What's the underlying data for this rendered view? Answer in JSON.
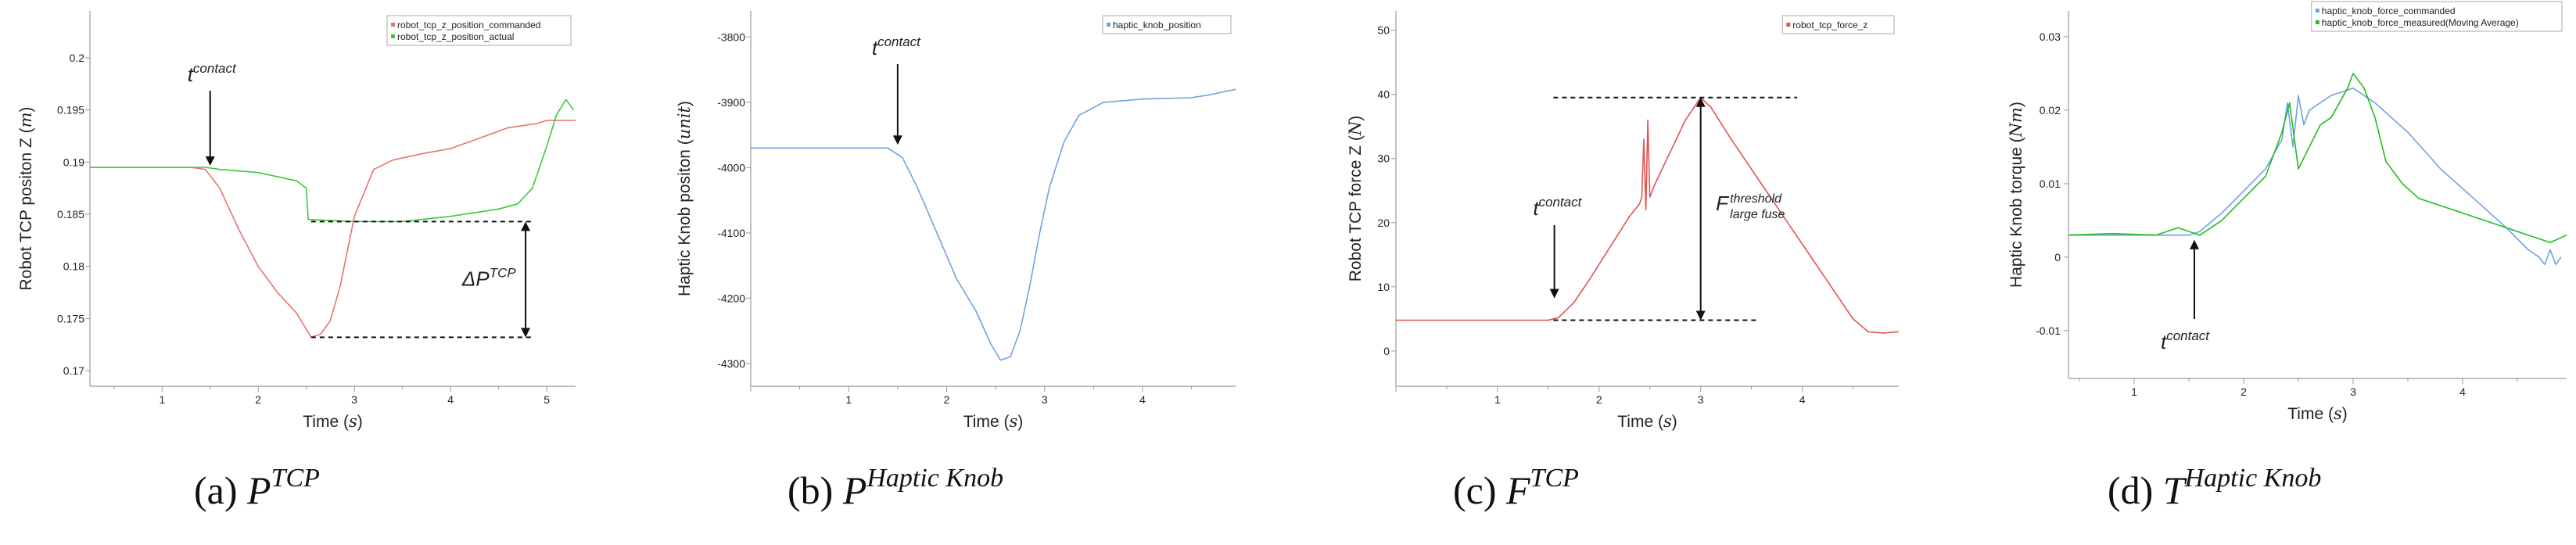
{
  "colors": {
    "commanded_red": "#e8736f",
    "actual_green": "#3cc93c",
    "knob_blue": "#6fa3df",
    "force_red": "#e05555",
    "torque_blue": "#6fa3df",
    "torque_green": "#22bb22"
  },
  "chart_data": [
    {
      "type": "line",
      "xlabel": "Time (s)",
      "ylabel": "Robot TCP positon Z (m)",
      "xlim": [
        0.25,
        5.3
      ],
      "ylim": [
        0.1685,
        0.2045
      ],
      "x_ticks": [
        1,
        2,
        3,
        4,
        5
      ],
      "y_ticks": [
        0.17,
        0.175,
        0.18,
        0.185,
        0.19,
        0.195,
        0.2
      ],
      "legend_position": "top-right",
      "series": [
        {
          "name": "robot_tcp_z_position_commanded",
          "color": "#e8736f",
          "points": [
            [
              0.25,
              0.1895
            ],
            [
              1.3,
              0.1895
            ],
            [
              1.45,
              0.1893
            ],
            [
              1.6,
              0.1875
            ],
            [
              1.8,
              0.1835
            ],
            [
              2.0,
              0.18
            ],
            [
              2.2,
              0.1775
            ],
            [
              2.4,
              0.1755
            ],
            [
              2.55,
              0.1732
            ],
            [
              2.65,
              0.1735
            ],
            [
              2.75,
              0.1748
            ],
            [
              2.85,
              0.178
            ],
            [
              3.0,
              0.1848
            ],
            [
              3.2,
              0.1893
            ],
            [
              3.4,
              0.1902
            ],
            [
              3.7,
              0.1908
            ],
            [
              4.0,
              0.1913
            ],
            [
              4.3,
              0.1923
            ],
            [
              4.6,
              0.1933
            ],
            [
              4.9,
              0.1937
            ],
            [
              5.0,
              0.194
            ],
            [
              5.3,
              0.194
            ]
          ]
        },
        {
          "name": "robot_tcp_z_position_actual",
          "color": "#3cc93c",
          "points": [
            [
              0.25,
              0.1895
            ],
            [
              1.45,
              0.1895
            ],
            [
              1.6,
              0.1893
            ],
            [
              2.0,
              0.189
            ],
            [
              2.4,
              0.1882
            ],
            [
              2.5,
              0.1875
            ],
            [
              2.52,
              0.1845
            ],
            [
              3.0,
              0.1843
            ],
            [
              3.5,
              0.1843
            ],
            [
              4.0,
              0.1848
            ],
            [
              4.5,
              0.1855
            ],
            [
              4.7,
              0.186
            ],
            [
              4.85,
              0.1875
            ],
            [
              5.0,
              0.1915
            ],
            [
              5.1,
              0.1945
            ],
            [
              5.2,
              0.196
            ],
            [
              5.28,
              0.195
            ]
          ]
        }
      ],
      "annotations": {
        "contact_label": "t",
        "contact_sup": "contact",
        "contact_x": 1.5,
        "delta_label": "ΔP",
        "delta_sup": "TCP"
      }
    },
    {
      "type": "line",
      "xlabel": "Time (s)",
      "ylabel": "Haptic Knob positon (unit)",
      "xlim": [
        0.0,
        4.95
      ],
      "ylim": [
        -4335,
        -3760
      ],
      "x_ticks": [
        1,
        2,
        3,
        4
      ],
      "y_ticks": [
        -4300,
        -4200,
        -4100,
        -4000,
        -3900,
        -3800
      ],
      "legend_position": "top-right",
      "series": [
        {
          "name": "haptic_knob_position",
          "color": "#6fa3df",
          "points": [
            [
              0.0,
              -3970
            ],
            [
              1.4,
              -3970
            ],
            [
              1.55,
              -3985
            ],
            [
              1.7,
              -4030
            ],
            [
              1.9,
              -4100
            ],
            [
              2.1,
              -4170
            ],
            [
              2.3,
              -4220
            ],
            [
              2.45,
              -4270
            ],
            [
              2.55,
              -4295
            ],
            [
              2.65,
              -4290
            ],
            [
              2.75,
              -4250
            ],
            [
              2.85,
              -4180
            ],
            [
              2.95,
              -4100
            ],
            [
              3.05,
              -4030
            ],
            [
              3.2,
              -3960
            ],
            [
              3.35,
              -3920
            ],
            [
              3.6,
              -3900
            ],
            [
              4.0,
              -3895
            ],
            [
              4.5,
              -3893
            ],
            [
              4.7,
              -3888
            ],
            [
              4.95,
              -3880
            ]
          ]
        }
      ],
      "annotations": {
        "contact_label": "t",
        "contact_sup": "contact",
        "contact_x": 1.5
      }
    },
    {
      "type": "line",
      "xlabel": "Time (s)",
      "ylabel": "Robot TCP force Z (N)",
      "xlim": [
        0.0,
        4.95
      ],
      "ylim": [
        -5.5,
        53
      ],
      "x_ticks": [
        1,
        2,
        3,
        4
      ],
      "y_ticks": [
        0,
        10,
        20,
        30,
        40,
        50
      ],
      "legend_position": "top-right",
      "series": [
        {
          "name": "robot_tcp_force_z",
          "color": "#e05555",
          "points": [
            [
              0.0,
              4.8
            ],
            [
              1.2,
              4.8
            ],
            [
              1.5,
              4.8
            ],
            [
              1.6,
              5.2
            ],
            [
              1.75,
              7.5
            ],
            [
              1.9,
              11
            ],
            [
              2.1,
              16
            ],
            [
              2.3,
              21
            ],
            [
              2.4,
              23
            ],
            [
              2.42,
              24
            ],
            [
              2.44,
              33
            ],
            [
              2.46,
              22
            ],
            [
              2.48,
              36
            ],
            [
              2.5,
              24
            ],
            [
              2.55,
              26
            ],
            [
              2.7,
              31
            ],
            [
              2.85,
              36
            ],
            [
              3.0,
              39.5
            ],
            [
              3.1,
              38
            ],
            [
              3.3,
              33
            ],
            [
              3.6,
              26
            ],
            [
              3.9,
              19
            ],
            [
              4.2,
              12
            ],
            [
              4.5,
              5
            ],
            [
              4.65,
              3
            ],
            [
              4.8,
              2.8
            ],
            [
              4.95,
              3
            ]
          ]
        }
      ],
      "annotations": {
        "contact_label": "t",
        "contact_sup": "contact",
        "contact_x": 1.55,
        "threshold_label": "F",
        "threshold_sup": "threshold",
        "threshold_sub": "large fuse"
      }
    },
    {
      "type": "line",
      "xlabel": "Time (s)",
      "ylabel": "Haptic Knob torque (Nm)",
      "xlim": [
        0.4,
        4.95
      ],
      "ylim": [
        -0.0165,
        0.0335
      ],
      "x_ticks": [
        1,
        2,
        3,
        4
      ],
      "y_ticks": [
        -0.01,
        0,
        0.01,
        0.02,
        0.03
      ],
      "legend_position": "top-right",
      "series": [
        {
          "name": "haptic_knob_force_commanded",
          "color": "#6fa3df",
          "points": [
            [
              0.4,
              0.003
            ],
            [
              1.5,
              0.003
            ],
            [
              1.6,
              0.0035
            ],
            [
              1.8,
              0.006
            ],
            [
              2.0,
              0.009
            ],
            [
              2.2,
              0.012
            ],
            [
              2.35,
              0.016
            ],
            [
              2.4,
              0.021
            ],
            [
              2.45,
              0.015
            ],
            [
              2.5,
              0.022
            ],
            [
              2.55,
              0.018
            ],
            [
              2.6,
              0.02
            ],
            [
              2.8,
              0.022
            ],
            [
              3.0,
              0.023
            ],
            [
              3.2,
              0.021
            ],
            [
              3.5,
              0.017
            ],
            [
              3.8,
              0.012
            ],
            [
              4.1,
              0.008
            ],
            [
              4.4,
              0.004
            ],
            [
              4.6,
              0.001
            ],
            [
              4.7,
              0.0
            ],
            [
              4.75,
              -0.001
            ],
            [
              4.8,
              0.001
            ],
            [
              4.85,
              -0.001
            ],
            [
              4.9,
              0.0
            ]
          ]
        },
        {
          "name": "haptic_knob_force_measured(Moving Average)",
          "color": "#22bb22",
          "points": [
            [
              0.4,
              0.003
            ],
            [
              0.8,
              0.0032
            ],
            [
              1.2,
              0.003
            ],
            [
              1.4,
              0.004
            ],
            [
              1.6,
              0.003
            ],
            [
              1.8,
              0.005
            ],
            [
              2.0,
              0.008
            ],
            [
              2.2,
              0.011
            ],
            [
              2.35,
              0.017
            ],
            [
              2.42,
              0.021
            ],
            [
              2.5,
              0.012
            ],
            [
              2.6,
              0.015
            ],
            [
              2.7,
              0.018
            ],
            [
              2.8,
              0.019
            ],
            [
              2.95,
              0.023
            ],
            [
              3.0,
              0.025
            ],
            [
              3.1,
              0.023
            ],
            [
              3.2,
              0.019
            ],
            [
              3.3,
              0.013
            ],
            [
              3.45,
              0.01
            ],
            [
              3.6,
              0.008
            ],
            [
              3.8,
              0.007
            ],
            [
              4.0,
              0.006
            ],
            [
              4.2,
              0.005
            ],
            [
              4.4,
              0.004
            ],
            [
              4.6,
              0.003
            ],
            [
              4.8,
              0.002
            ],
            [
              4.95,
              0.003
            ]
          ]
        }
      ],
      "annotations": {
        "contact_label": "t",
        "contact_sup": "contact",
        "contact_x": 1.55
      }
    }
  ],
  "captions": [
    {
      "label": "(a)",
      "symbol": "P",
      "sup": "TCP"
    },
    {
      "label": "(b)",
      "symbol": "P",
      "sup": "Haptic Knob"
    },
    {
      "label": "(c)",
      "symbol": "F",
      "sup": "TCP"
    },
    {
      "label": "(d)",
      "symbol": "T",
      "sup": "Haptic Knob"
    }
  ]
}
